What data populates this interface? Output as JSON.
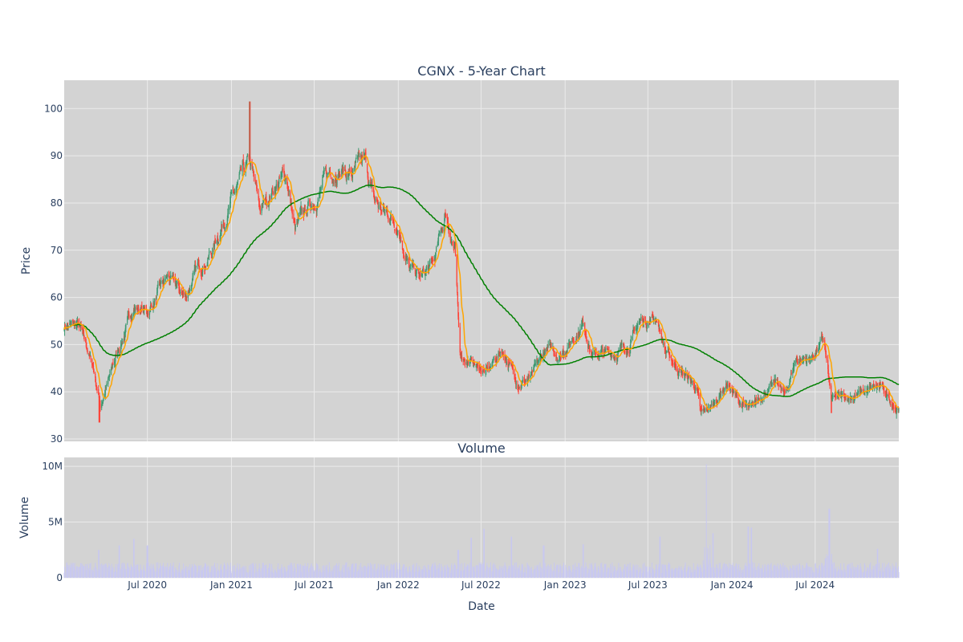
{
  "colors": {
    "plot_bg": "#d3d3d3",
    "grid": "#ebebeb",
    "text": "#2a3f5f",
    "candle_up": "#3d9970",
    "candle_down": "#ff4136",
    "ma_short": "#ffa500",
    "ma_long": "#008000",
    "volume_bar": "#c8c8f0"
  },
  "chart_data": [
    {
      "type": "candlestick",
      "title": "CGNX - 5-Year Chart",
      "xlabel": "",
      "ylabel": "Price",
      "x_range": [
        "2020-01-01",
        "2024-12-31"
      ],
      "ylim": [
        29.5,
        106
      ],
      "y_ticks": [
        30,
        40,
        50,
        60,
        70,
        80,
        90,
        100
      ],
      "grid": true,
      "price_anchors": [
        [
          "2020-01-01",
          54
        ],
        [
          "2020-02-01",
          54
        ],
        [
          "2020-03-05",
          45
        ],
        [
          "2020-03-20",
          37
        ],
        [
          "2020-04-15",
          45
        ],
        [
          "2020-05-10",
          52
        ],
        [
          "2020-06-01",
          58
        ],
        [
          "2020-07-01",
          57
        ],
        [
          "2020-08-15",
          64
        ],
        [
          "2020-09-20",
          60
        ],
        [
          "2020-10-20",
          66
        ],
        [
          "2020-11-20",
          70
        ],
        [
          "2020-12-20",
          78
        ],
        [
          "2021-01-20",
          84
        ],
        [
          "2021-02-10",
          88
        ],
        [
          "2021-03-05",
          78
        ],
        [
          "2021-04-01",
          83
        ],
        [
          "2021-05-01",
          86
        ],
        [
          "2021-05-20",
          74
        ],
        [
          "2021-06-20",
          79
        ],
        [
          "2021-07-20",
          84
        ],
        [
          "2021-08-20",
          88
        ],
        [
          "2021-09-20",
          86
        ],
        [
          "2021-10-20",
          88
        ],
        [
          "2021-11-10",
          80
        ],
        [
          "2021-12-01",
          78
        ],
        [
          "2022-01-01",
          76
        ],
        [
          "2022-01-25",
          66
        ],
        [
          "2022-02-20",
          64
        ],
        [
          "2022-03-20",
          67
        ],
        [
          "2022-04-15",
          78
        ],
        [
          "2022-05-05",
          70
        ],
        [
          "2022-05-15",
          48
        ],
        [
          "2022-06-15",
          46
        ],
        [
          "2022-07-15",
          44
        ],
        [
          "2022-08-15",
          49
        ],
        [
          "2022-09-20",
          42
        ],
        [
          "2022-10-20",
          43
        ],
        [
          "2022-11-20",
          49
        ],
        [
          "2022-12-20",
          48
        ],
        [
          "2023-01-15",
          51
        ],
        [
          "2023-02-10",
          55
        ],
        [
          "2023-03-01",
          48
        ],
        [
          "2023-04-15",
          48
        ],
        [
          "2023-05-20",
          50
        ],
        [
          "2023-06-15",
          55
        ],
        [
          "2023-07-20",
          56
        ],
        [
          "2023-08-10",
          48
        ],
        [
          "2023-09-15",
          44
        ],
        [
          "2023-10-15",
          41
        ],
        [
          "2023-10-25",
          35
        ],
        [
          "2023-11-20",
          37
        ],
        [
          "2023-12-20",
          42
        ],
        [
          "2024-01-15",
          38
        ],
        [
          "2024-02-10",
          36
        ],
        [
          "2024-03-10",
          40
        ],
        [
          "2024-04-10",
          42
        ],
        [
          "2024-04-25",
          39
        ],
        [
          "2024-05-20",
          47
        ],
        [
          "2024-06-20",
          47
        ],
        [
          "2024-07-20",
          51
        ],
        [
          "2024-08-05",
          38
        ],
        [
          "2024-09-10",
          39
        ],
        [
          "2024-10-20",
          40
        ],
        [
          "2024-11-20",
          41
        ],
        [
          "2024-12-31",
          36
        ]
      ],
      "price_spikes": [
        [
          "2021-02-10",
          101.5
        ],
        [
          "2020-03-18",
          33.5
        ],
        [
          "2024-08-05",
          35.5
        ]
      ],
      "series": [
        {
          "name": "",
          "color_key": "ma_short",
          "window_days": 20
        },
        {
          "name": "",
          "color_key": "ma_long",
          "window_days": 200
        }
      ]
    },
    {
      "type": "bar",
      "title": "Volume",
      "xlabel": "Date",
      "ylabel": "Volume",
      "x_range": [
        "2020-01-01",
        "2024-12-31"
      ],
      "ylim": [
        0,
        10.8
      ],
      "y_ticks": [
        0,
        5,
        10
      ],
      "y_tick_labels": [
        "0",
        "5M",
        "10M"
      ],
      "x_ticks": [
        "2020-07-01",
        "2021-01-01",
        "2021-07-01",
        "2022-01-01",
        "2022-07-01",
        "2023-01-01",
        "2023-07-01",
        "2024-01-01",
        "2024-07-01"
      ],
      "x_tick_labels": [
        "Jul 2020",
        "Jan 2021",
        "Jul 2021",
        "Jan 2022",
        "Jul 2022",
        "Jan 2023",
        "Jul 2023",
        "Jan 2024",
        "Jul 2024"
      ],
      "grid": true,
      "volume_base_millions": 0.9,
      "volume_spikes_millions": [
        [
          "2020-03-16",
          2.5
        ],
        [
          "2020-05-01",
          2.9
        ],
        [
          "2020-06-01",
          3.5
        ],
        [
          "2020-07-01",
          2.9
        ],
        [
          "2022-05-12",
          2.5
        ],
        [
          "2022-06-10",
          3.6
        ],
        [
          "2022-07-08",
          4.4
        ],
        [
          "2022-09-05",
          3.7
        ],
        [
          "2022-11-15",
          2.9
        ],
        [
          "2023-02-10",
          3.0
        ],
        [
          "2023-07-28",
          3.7
        ],
        [
          "2023-11-05",
          10.2
        ],
        [
          "2023-11-20",
          4.0
        ],
        [
          "2024-02-05",
          4.6
        ],
        [
          "2024-02-12",
          4.5
        ],
        [
          "2024-08-01",
          6.2
        ],
        [
          "2024-11-15",
          2.6
        ]
      ]
    }
  ]
}
